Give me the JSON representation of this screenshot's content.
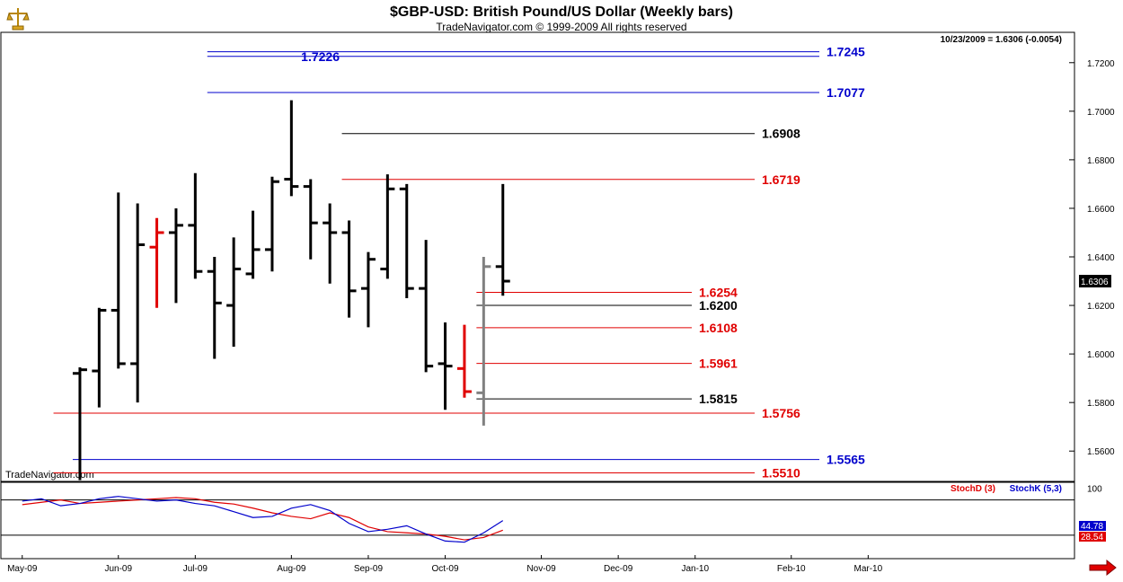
{
  "header": {
    "title": "$GBP-USD:  British Pound/US Dollar  (Weekly bars)",
    "subtitle": "TradeNavigator.com © 1999-2009 All rights reserved",
    "last_bar_info": "10/23/2009 = 1.6306 (-0.0054)",
    "watermark": "TradeNavigator.com",
    "logo_icon": "scales-icon"
  },
  "colors": {
    "blue_levels": "#0000cc",
    "red_levels": "#e00000",
    "black_levels": "#000000",
    "bars_default": "#000000",
    "bars_highlight": "#e00000",
    "bars_current": "#808080",
    "stochD": "#e00000",
    "stochK": "#0000cc",
    "background": "#ffffff"
  },
  "chart_data": [
    {
      "type": "ohlc",
      "title": "$GBP-USD:  British Pound/US Dollar  (Weekly bars)",
      "ylim": [
        1.5475,
        1.7325
      ],
      "y_ticks": [
        "1.7200",
        "1.7000",
        "1.6800",
        "1.6600",
        "1.6400",
        "1.6200",
        "1.6000",
        "1.5800",
        "1.5600"
      ],
      "x_ticks": [
        {
          "label": "May-09",
          "x": 0
        },
        {
          "label": "Jun-09",
          "x": 5
        },
        {
          "label": "Jul-09",
          "x": 9
        },
        {
          "label": "Aug-09",
          "x": 14
        },
        {
          "label": "Sep-09",
          "x": 18
        },
        {
          "label": "Oct-09",
          "x": 22
        },
        {
          "label": "Nov-09",
          "x": 27
        },
        {
          "label": "Dec-09",
          "x": 31
        },
        {
          "label": "Jan-10",
          "x": 35
        },
        {
          "label": "Feb-10",
          "x": 40
        },
        {
          "label": "Mar-10",
          "x": 44
        }
      ],
      "current_price_label": "1.6306",
      "bars": [
        {
          "x": 3,
          "o": 1.592,
          "h": 1.5945,
          "l": 1.548,
          "c": 1.5935,
          "color": "bars_default"
        },
        {
          "x": 4,
          "o": 1.593,
          "h": 1.619,
          "l": 1.578,
          "c": 1.618,
          "color": "bars_default"
        },
        {
          "x": 5,
          "o": 1.618,
          "h": 1.6665,
          "l": 1.594,
          "c": 1.596,
          "color": "bars_default"
        },
        {
          "x": 6,
          "o": 1.596,
          "h": 1.662,
          "l": 1.58,
          "c": 1.645,
          "color": "bars_default"
        },
        {
          "x": 7,
          "o": 1.644,
          "h": 1.656,
          "l": 1.619,
          "c": 1.65,
          "color": "bars_highlight"
        },
        {
          "x": 8,
          "o": 1.65,
          "h": 1.66,
          "l": 1.621,
          "c": 1.653,
          "color": "bars_default"
        },
        {
          "x": 9,
          "o": 1.653,
          "h": 1.6745,
          "l": 1.631,
          "c": 1.634,
          "color": "bars_default"
        },
        {
          "x": 10,
          "o": 1.634,
          "h": 1.64,
          "l": 1.598,
          "c": 1.621,
          "color": "bars_default"
        },
        {
          "x": 11,
          "o": 1.62,
          "h": 1.648,
          "l": 1.603,
          "c": 1.635,
          "color": "bars_default"
        },
        {
          "x": 12,
          "o": 1.633,
          "h": 1.659,
          "l": 1.631,
          "c": 1.643,
          "color": "bars_default"
        },
        {
          "x": 13,
          "o": 1.643,
          "h": 1.673,
          "l": 1.634,
          "c": 1.671,
          "color": "bars_default"
        },
        {
          "x": 14,
          "o": 1.672,
          "h": 1.7045,
          "l": 1.665,
          "c": 1.669,
          "color": "bars_default"
        },
        {
          "x": 15,
          "o": 1.669,
          "h": 1.672,
          "l": 1.639,
          "c": 1.654,
          "color": "bars_default"
        },
        {
          "x": 16,
          "o": 1.654,
          "h": 1.662,
          "l": 1.629,
          "c": 1.65,
          "color": "bars_default"
        },
        {
          "x": 17,
          "o": 1.65,
          "h": 1.655,
          "l": 1.615,
          "c": 1.626,
          "color": "bars_default"
        },
        {
          "x": 18,
          "o": 1.627,
          "h": 1.642,
          "l": 1.611,
          "c": 1.639,
          "color": "bars_default"
        },
        {
          "x": 19,
          "o": 1.635,
          "h": 1.674,
          "l": 1.631,
          "c": 1.668,
          "color": "bars_default"
        },
        {
          "x": 20,
          "o": 1.668,
          "h": 1.67,
          "l": 1.623,
          "c": 1.627,
          "color": "bars_default"
        },
        {
          "x": 21,
          "o": 1.627,
          "h": 1.647,
          "l": 1.5925,
          "c": 1.595,
          "color": "bars_default"
        },
        {
          "x": 22,
          "o": 1.596,
          "h": 1.613,
          "l": 1.577,
          "c": 1.595,
          "color": "bars_default"
        },
        {
          "x": 23,
          "o": 1.594,
          "h": 1.612,
          "l": 1.582,
          "c": 1.5845,
          "color": "bars_highlight"
        },
        {
          "x": 24,
          "o": 1.584,
          "h": 1.64,
          "l": 1.5705,
          "c": 1.636,
          "color": "bars_current"
        },
        {
          "x": 25,
          "o": 1.636,
          "h": 1.67,
          "l": 1.624,
          "c": 1.63,
          "color": "bars_default"
        }
      ],
      "levels": [
        {
          "value": 1.7245,
          "label": "1.7245",
          "color": "blue_levels",
          "x_start": 10,
          "label_side": "right"
        },
        {
          "value": 1.7226,
          "label": "1.7226",
          "color": "blue_levels",
          "x_start": 10,
          "label_side": "left"
        },
        {
          "value": 1.7077,
          "label": "1.7077",
          "color": "blue_levels",
          "x_start": 10,
          "label_side": "right"
        },
        {
          "value": 1.6908,
          "label": "1.6908",
          "color": "black_levels",
          "x_start": 17,
          "label_side": "right"
        },
        {
          "value": 1.6719,
          "label": "1.6719",
          "color": "red_levels",
          "x_start": 17,
          "label_side": "right"
        },
        {
          "value": 1.6254,
          "label": "1.6254",
          "color": "red_levels",
          "x_start": 24,
          "label_side": "right"
        },
        {
          "value": 1.62,
          "label": "1.6200",
          "color": "black_levels",
          "x_start": 24,
          "label_side": "right"
        },
        {
          "value": 1.6108,
          "label": "1.6108",
          "color": "red_levels",
          "x_start": 24,
          "label_side": "right"
        },
        {
          "value": 1.5961,
          "label": "1.5961",
          "color": "red_levels",
          "x_start": 24,
          "label_side": "right"
        },
        {
          "value": 1.5815,
          "label": "1.5815",
          "color": "black_levels",
          "x_start": 24,
          "label_side": "right"
        },
        {
          "value": 1.5756,
          "label": "1.5756",
          "color": "red_levels",
          "x_start": 2,
          "label_side": "right"
        },
        {
          "value": 1.5565,
          "label": "1.5565",
          "color": "blue_levels",
          "x_start": 3,
          "label_side": "right"
        },
        {
          "value": 1.551,
          "label": "1.5510",
          "color": "red_levels",
          "x_start": 2,
          "label_side": "right"
        }
      ]
    },
    {
      "type": "line",
      "legend": [
        "StochD (3)",
        "StochK (5,3)"
      ],
      "legend_placement": "top-right",
      "ylim": [
        -20,
        110
      ],
      "y_ticks": [
        "100"
      ],
      "ref_lines": [
        80,
        20
      ],
      "readouts": [
        {
          "value": "44.78",
          "color": "stochK"
        },
        {
          "value": "28.54",
          "color": "stochD"
        }
      ],
      "series": [
        {
          "name": "StochD (3)",
          "color": "stochD",
          "x": [
            0,
            1,
            2,
            3,
            4,
            5,
            6,
            7,
            8,
            9,
            10,
            11,
            12,
            13,
            14,
            15,
            16,
            17,
            18,
            19,
            20,
            21,
            22,
            23,
            24,
            25
          ],
          "values": [
            72,
            76,
            80,
            74,
            76,
            78,
            80,
            82,
            84,
            82,
            76,
            73,
            66,
            58,
            52,
            48,
            58,
            50,
            34,
            26,
            24,
            22,
            18,
            12,
            16,
            28.54
          ]
        },
        {
          "name": "StochK (5,3)",
          "color": "stochK",
          "x": [
            0,
            1,
            2,
            3,
            4,
            5,
            6,
            7,
            8,
            9,
            10,
            11,
            12,
            13,
            14,
            15,
            16,
            17,
            18,
            19,
            20,
            21,
            22,
            23,
            24,
            25
          ],
          "values": [
            78,
            82,
            70,
            74,
            82,
            86,
            82,
            78,
            80,
            74,
            70,
            60,
            50,
            52,
            66,
            72,
            62,
            40,
            26,
            30,
            36,
            22,
            10,
            8,
            24,
            44.78
          ]
        }
      ]
    }
  ]
}
